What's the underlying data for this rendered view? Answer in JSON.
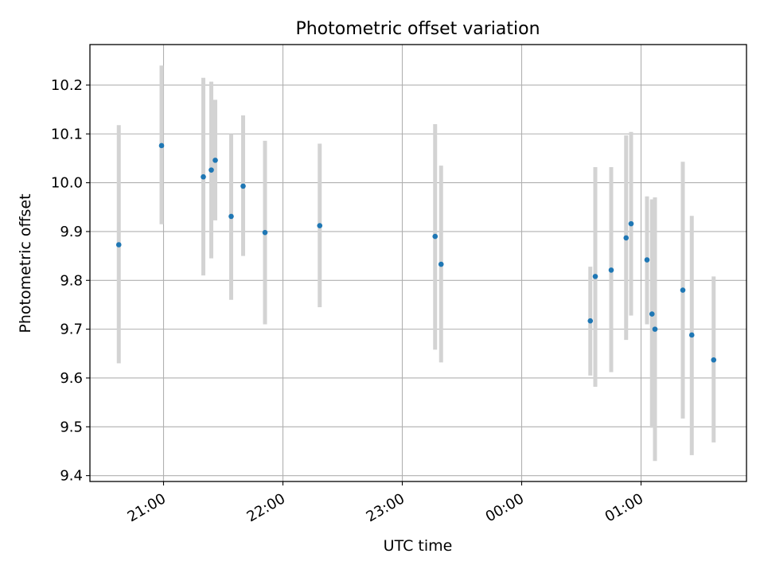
{
  "chart_data": {
    "type": "scatter",
    "title": "Photometric offset variation",
    "xlabel": "UTC time",
    "ylabel": "Photometric offset",
    "x_tick_labels": [
      "21:00",
      "22:00",
      "23:00",
      "00:00",
      "01:00"
    ],
    "x_tick_times": [
      "21:00",
      "22:00",
      "23:00",
      "24:00",
      "25:00"
    ],
    "x_range": [
      "20:23",
      "25:53"
    ],
    "y_ticks": [
      9.4,
      9.5,
      9.6,
      9.7,
      9.8,
      9.9,
      10.0,
      10.1,
      10.2
    ],
    "y_tick_labels": [
      "9.4",
      "9.5",
      "9.6",
      "9.7",
      "9.8",
      "9.9",
      "10.0",
      "10.1",
      "10.2"
    ],
    "ylim": [
      9.388,
      10.283
    ],
    "grid": true,
    "marker_color": "#1f77b4",
    "errorbar_color": "#d3d3d3",
    "points": [
      {
        "time": "20:37.5",
        "y": 9.873,
        "low": 9.63,
        "high": 10.118
      },
      {
        "time": "20:59.0",
        "y": 10.076,
        "low": 9.915,
        "high": 10.24
      },
      {
        "time": "21:20.0",
        "y": 10.012,
        "low": 9.81,
        "high": 10.215
      },
      {
        "time": "21:24.0",
        "y": 10.026,
        "low": 9.845,
        "high": 10.207
      },
      {
        "time": "21:26.0",
        "y": 10.046,
        "low": 9.923,
        "high": 10.17
      },
      {
        "time": "21:34.0",
        "y": 9.931,
        "low": 9.76,
        "high": 10.1
      },
      {
        "time": "21:40.0",
        "y": 9.993,
        "low": 9.85,
        "high": 10.138
      },
      {
        "time": "21:51.0",
        "y": 9.898,
        "low": 9.71,
        "high": 10.086
      },
      {
        "time": "22:18.5",
        "y": 9.912,
        "low": 9.745,
        "high": 10.08
      },
      {
        "time": "23:16.5",
        "y": 9.89,
        "low": 9.658,
        "high": 10.12
      },
      {
        "time": "23:19.5",
        "y": 9.833,
        "low": 9.632,
        "high": 10.035
      },
      {
        "time": "24:34.5",
        "y": 9.717,
        "low": 9.605,
        "high": 9.828
      },
      {
        "time": "24:37.0",
        "y": 9.808,
        "low": 9.582,
        "high": 10.032
      },
      {
        "time": "24:45.0",
        "y": 9.821,
        "low": 9.612,
        "high": 10.032
      },
      {
        "time": "24:52.5",
        "y": 9.887,
        "low": 9.678,
        "high": 10.097
      },
      {
        "time": "24:55.0",
        "y": 9.916,
        "low": 9.728,
        "high": 10.104
      },
      {
        "time": "25:03.0",
        "y": 9.842,
        "low": 9.71,
        "high": 9.972
      },
      {
        "time": "25:05.5",
        "y": 9.731,
        "low": 9.498,
        "high": 9.966
      },
      {
        "time": "25:07.0",
        "y": 9.7,
        "low": 9.43,
        "high": 9.97
      },
      {
        "time": "25:21.0",
        "y": 9.78,
        "low": 9.517,
        "high": 10.043
      },
      {
        "time": "25:25.5",
        "y": 9.688,
        "low": 9.442,
        "high": 9.932
      },
      {
        "time": "25:36.5",
        "y": 9.637,
        "low": 9.468,
        "high": 9.808
      }
    ]
  }
}
